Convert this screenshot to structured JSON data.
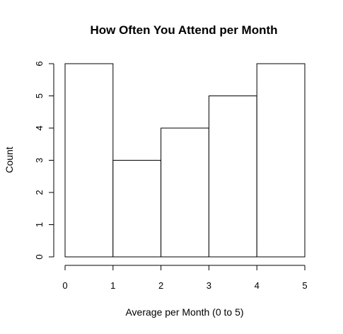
{
  "chart_data": {
    "type": "bar",
    "title": "How Often You Attend per Month",
    "xlabel": "Average per Month (0 to 5)",
    "ylabel": "Count",
    "bins": [
      [
        0,
        1
      ],
      [
        1,
        2
      ],
      [
        2,
        3
      ],
      [
        3,
        4
      ],
      [
        4,
        5
      ]
    ],
    "values": [
      6,
      3,
      4,
      5,
      6
    ],
    "xlim": [
      0,
      5
    ],
    "ylim": [
      0,
      6
    ],
    "xticks": [
      0,
      1,
      2,
      3,
      4,
      5
    ],
    "yticks": [
      0,
      1,
      2,
      3,
      4,
      5,
      6
    ],
    "grid": false,
    "colors": {
      "bar_fill": "#ffffff",
      "bar_stroke": "#000000"
    }
  }
}
